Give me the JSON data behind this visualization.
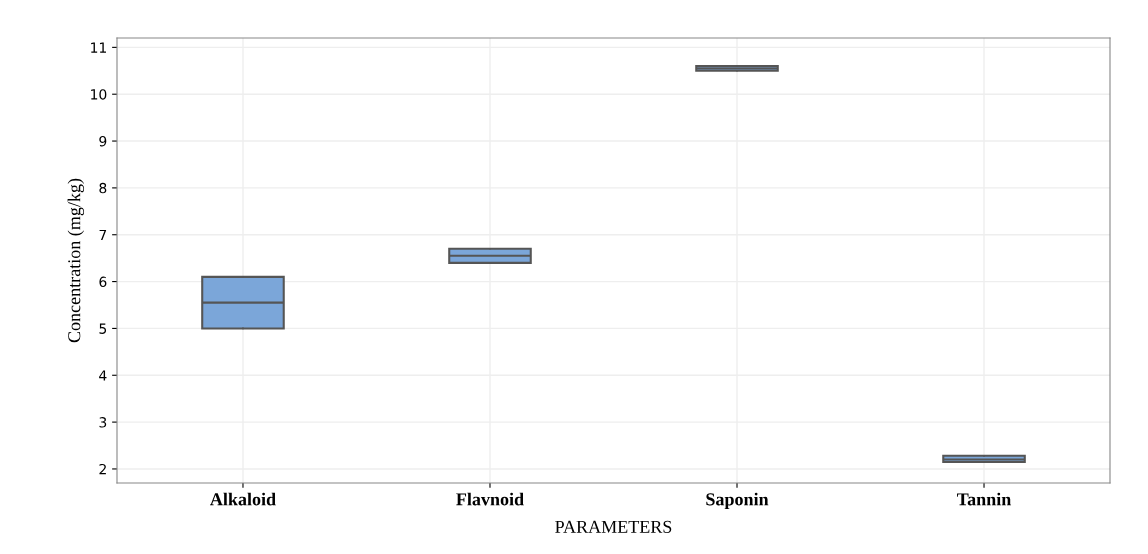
{
  "chart_data": {
    "type": "box",
    "xlabel": "PARAMETERS",
    "ylabel": "Concentration (mg/kg)",
    "categories": [
      "Alkaloid",
      "Flavnoid",
      "Saponin",
      "Tannin"
    ],
    "color": "#7ba6d9",
    "boxes": [
      {
        "low": 5.0,
        "q1": 5.0,
        "median": 5.55,
        "q3": 6.1,
        "high": 6.1
      },
      {
        "low": 6.4,
        "q1": 6.4,
        "median": 6.55,
        "q3": 6.7,
        "high": 6.7
      },
      {
        "low": 10.5,
        "q1": 10.5,
        "median": 10.55,
        "q3": 10.6,
        "high": 10.6
      },
      {
        "low": 2.15,
        "q1": 2.15,
        "median": 2.2,
        "q3": 2.28,
        "high": 2.28
      }
    ],
    "ylim": [
      1.7,
      11.2
    ],
    "yticks": [
      2,
      3,
      4,
      5,
      6,
      7,
      8,
      9,
      10,
      11
    ],
    "grid": true
  }
}
